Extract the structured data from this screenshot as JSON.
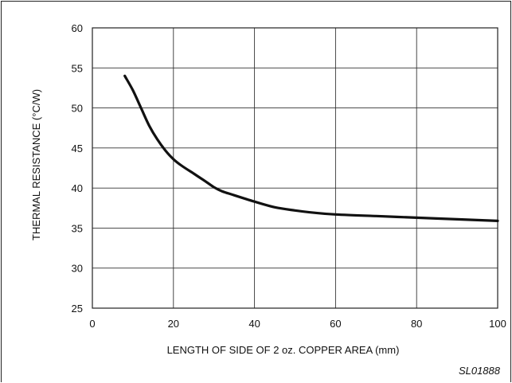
{
  "chart_data": {
    "type": "line",
    "title": "",
    "xlabel": "LENGTH OF SIDE OF 2 oz. COPPER AREA (mm)",
    "ylabel": "THERMAL RESISTANCE (°C/W)",
    "xlim": [
      0,
      100
    ],
    "ylim": [
      25,
      60
    ],
    "xticks": [
      0,
      20,
      40,
      60,
      80,
      100
    ],
    "yticks": [
      25,
      30,
      35,
      40,
      45,
      50,
      55,
      60
    ],
    "grid": true,
    "series": [
      {
        "x": [
          8,
          10,
          12,
          14,
          16,
          18,
          20,
          22,
          25,
          28,
          30,
          32,
          35,
          40,
          45,
          50,
          55,
          60,
          70,
          80,
          90,
          100
        ],
        "y": [
          54.0,
          52.2,
          50.0,
          47.8,
          46.1,
          44.7,
          43.6,
          42.8,
          41.8,
          40.8,
          40.1,
          39.6,
          39.1,
          38.3,
          37.6,
          37.2,
          36.9,
          36.7,
          36.5,
          36.3,
          36.1,
          35.9
        ]
      }
    ],
    "figure_code": "SL01888"
  }
}
